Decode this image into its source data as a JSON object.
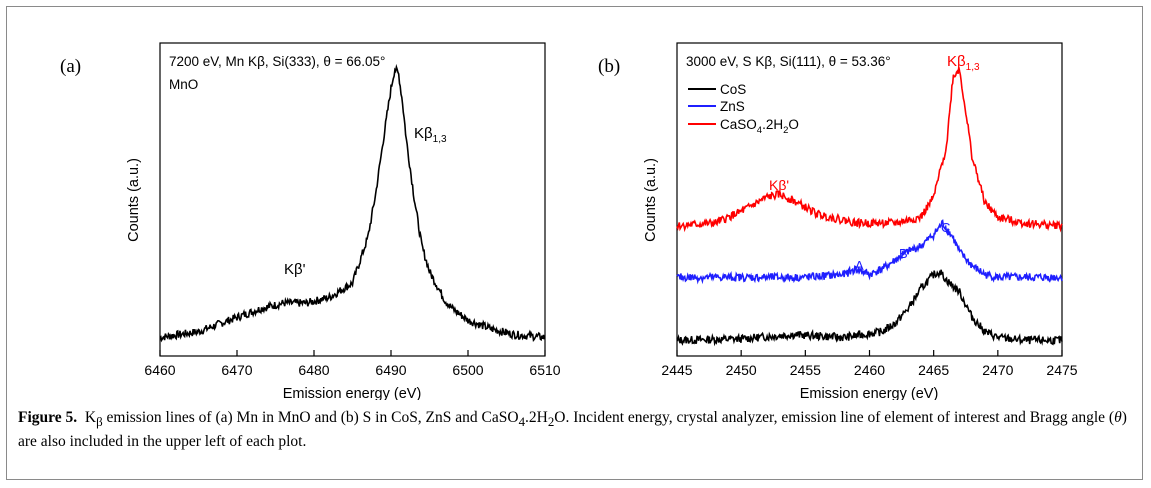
{
  "caption": {
    "label": "Figure 5.",
    "parts": {
      "p1": "K",
      "p1_sub": "β",
      "p2": " emission lines of (a) Mn in MnO and (b) S in CoS, ZnS and CaSO",
      "p2_sub": "4",
      "p3": ".2H",
      "p3_sub": "2",
      "p4": "O. Incident energy, crystal analyzer, emission line of element of interest and Bragg angle (",
      "p4_theta": "θ",
      "p5": ") are also included in the upper left of each plot."
    }
  },
  "panel_a": {
    "letter": "(a)",
    "header_line1": "7200 eV, Mn Kβ, Si(333), θ = 66.05°",
    "header_line2": "MnO",
    "peak_label": "Kβ",
    "peak_label_sub": "1,3",
    "sat_label": "Kβ'"
  },
  "panel_b": {
    "letter": "(b)",
    "header_line1": "3000 eV, S Kβ, Si(111), θ = 53.36°",
    "peak_label": "Kβ",
    "peak_label_sub": "1,3",
    "sat_label": "Kβ'",
    "feature_A": "A",
    "feature_B": "B",
    "feature_C": "C",
    "legend_cos": "CoS",
    "legend_zns": "ZnS",
    "legend_caso4_main": "CaSO",
    "legend_caso4_sub1": "4",
    "legend_caso4_mid": ".2H",
    "legend_caso4_sub2": "2",
    "legend_caso4_end": "O"
  },
  "chart_data": [
    {
      "type": "line",
      "xlabel": "Emission energy (eV)",
      "ylabel": "Counts (a.u.)",
      "xlim": [
        6460,
        6510
      ],
      "xticks": [
        6460,
        6470,
        6480,
        6490,
        6500,
        6510
      ],
      "ylim": [
        0,
        1
      ],
      "yticks_shown": false,
      "series": [
        {
          "name": "MnO",
          "color": "#000000",
          "x": [
            6460,
            6465,
            6470,
            6473,
            6476,
            6479,
            6482,
            6485,
            6487,
            6488,
            6489,
            6490,
            6490.5,
            6491,
            6491.5,
            6492,
            6493,
            6494,
            6495,
            6496,
            6497,
            6498,
            6500,
            6503,
            6506,
            6510
          ],
          "y": [
            0.03,
            0.05,
            0.1,
            0.13,
            0.15,
            0.15,
            0.17,
            0.22,
            0.38,
            0.53,
            0.72,
            0.9,
            0.97,
            0.95,
            0.85,
            0.72,
            0.52,
            0.35,
            0.26,
            0.21,
            0.16,
            0.13,
            0.09,
            0.06,
            0.04,
            0.03
          ]
        }
      ]
    },
    {
      "type": "line",
      "xlabel": "Emission energy (eV)",
      "ylabel": "Counts (a.u.)",
      "xlim": [
        2445,
        2475
      ],
      "xticks": [
        2445,
        2450,
        2455,
        2460,
        2465,
        2470,
        2475
      ],
      "ylim": [
        0,
        1
      ],
      "yticks_shown": false,
      "series": [
        {
          "name": "CoS",
          "color": "#000000",
          "x": [
            2445,
            2450,
            2454,
            2458,
            2461,
            2462,
            2463,
            2464,
            2465,
            2465.5,
            2466,
            2467,
            2468,
            2469,
            2470,
            2472,
            2475
          ],
          "y": [
            0.02,
            0.025,
            0.04,
            0.03,
            0.05,
            0.08,
            0.13,
            0.2,
            0.25,
            0.26,
            0.23,
            0.19,
            0.1,
            0.05,
            0.03,
            0.02,
            0.02
          ]
        },
        {
          "name": "ZnS",
          "color": "#1f1fff",
          "x": [
            2445,
            2450,
            2455,
            2458,
            2459,
            2460,
            2461,
            2462,
            2463,
            2464,
            2465,
            2465.7,
            2466.5,
            2467,
            2468,
            2469,
            2470,
            2472,
            2475
          ],
          "y": [
            0.24,
            0.24,
            0.24,
            0.25,
            0.27,
            0.25,
            0.27,
            0.3,
            0.33,
            0.35,
            0.39,
            0.43,
            0.38,
            0.33,
            0.28,
            0.25,
            0.24,
            0.24,
            0.24
          ]
        },
        {
          "name": "CaSO4.2H2O",
          "color": "#ff0000",
          "x": [
            2445,
            2448,
            2450,
            2452,
            2453,
            2454,
            2456,
            2459,
            2462,
            2464,
            2465,
            2466,
            2466.5,
            2467,
            2467.5,
            2468,
            2469,
            2470,
            2472,
            2475
          ],
          "y": [
            0.42,
            0.43,
            0.47,
            0.52,
            0.53,
            0.51,
            0.46,
            0.43,
            0.43,
            0.45,
            0.52,
            0.7,
            0.94,
            0.97,
            0.82,
            0.66,
            0.5,
            0.45,
            0.43,
            0.42
          ]
        }
      ]
    }
  ]
}
